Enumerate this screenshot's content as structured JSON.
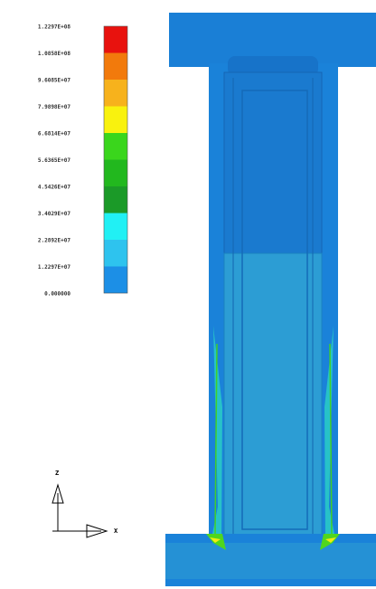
{
  "legend": {
    "labels": [
      "1.2297E+08",
      "1.0858E+08",
      "9.6085E+07",
      "7.9898E+07",
      "6.6814E+07",
      "5.6365E+07",
      "4.5426E+07",
      "3.4029E+07",
      "2.2892E+07",
      "1.2297E+07",
      "0.000000"
    ]
  },
  "triad": {
    "z": "Z",
    "x": "X"
  }
}
